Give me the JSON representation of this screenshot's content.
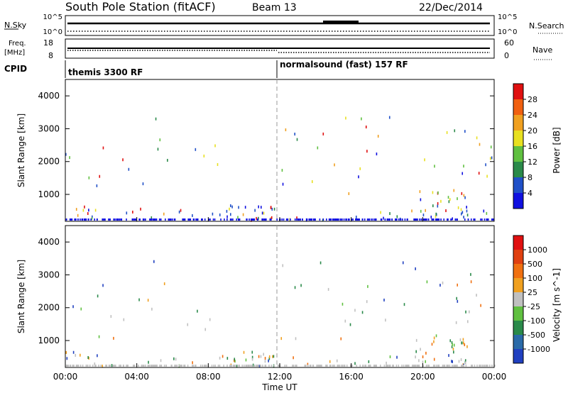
{
  "header": {
    "station": "South Pole Station (fitACF)",
    "beam": "Beam 13",
    "date": "22/Dec/2014"
  },
  "summary_panels": {
    "nsky_label": "N.Sky",
    "nsky_ticks": [
      "10^5",
      "10^0"
    ],
    "nsearch_label": "N.Search",
    "nsearch_ticks": [
      "10^5",
      "10^0"
    ],
    "freq_label_line1": "Freq.",
    "freq_label_line2": "[MHz]",
    "freq_ticks": [
      "18",
      "8"
    ],
    "nave_label": "Nave",
    "nave_ticks": [
      "60",
      "0"
    ],
    "cpid_label": "CPID",
    "cpid_segments": [
      {
        "label": "themis 3300 RF"
      },
      {
        "label": "normalsound (fast) 157 RF"
      }
    ]
  },
  "chart_data": [
    {
      "type": "heatmap",
      "quantity": "power",
      "xlabel": "",
      "ylabel": "Slant Range [km]",
      "xlim": [
        0,
        24
      ],
      "ylim": [
        180,
        4500
      ],
      "yticks": [
        "1000",
        "2000",
        "3000",
        "4000"
      ],
      "colorbar": {
        "label": "Power [dB]",
        "ticks": [
          "4",
          "8",
          "12",
          "16",
          "20",
          "24",
          "28"
        ],
        "colors": [
          "#1010e0",
          "#2050c8",
          "#2a8a4a",
          "#60c040",
          "#e8e020",
          "#f0a020",
          "#f06010",
          "#e01010"
        ]
      }
    },
    {
      "type": "heatmap",
      "quantity": "velocity",
      "xlabel": "Time UT",
      "ylabel": "Slant Range [km]",
      "xlim": [
        0,
        24
      ],
      "ylim": [
        180,
        4500
      ],
      "yticks": [
        "1000",
        "2000",
        "3000",
        "4000"
      ],
      "xticks": [
        "00:00",
        "04:00",
        "08:00",
        "12:00",
        "16:00",
        "20:00",
        "00:00"
      ],
      "colorbar": {
        "label": "Velocity [m s^-1]",
        "ticks": [
          "1000",
          "500",
          "100",
          "25",
          "-25",
          "-100",
          "-500",
          "-1000"
        ],
        "colors": [
          "#2040c0",
          "#2a6aa8",
          "#2a8a4a",
          "#60c040",
          "#c0c0c0",
          "#f0a020",
          "#f07010",
          "#e04010",
          "#e01010"
        ]
      }
    }
  ]
}
